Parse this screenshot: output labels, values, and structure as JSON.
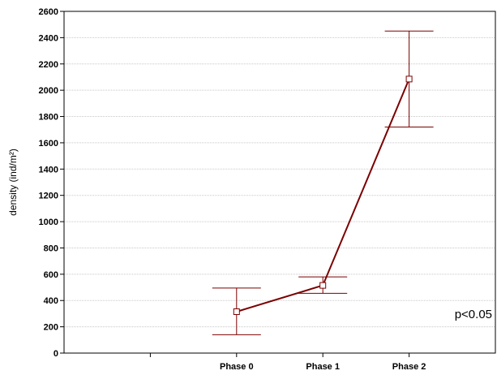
{
  "chart_data": {
    "type": "line",
    "title": "",
    "xlabel": "",
    "ylabel": "density (ind/m²)",
    "categories": [
      "Phase 0",
      "Phase 1",
      "Phase 2"
    ],
    "values": [
      315,
      515,
      2085
    ],
    "error_low": [
      140,
      455,
      1720
    ],
    "error_high": [
      495,
      580,
      2450
    ],
    "ylim": [
      0,
      2600
    ],
    "yticks": [
      0,
      200,
      400,
      600,
      800,
      1000,
      1200,
      1400,
      1600,
      1800,
      2000,
      2200,
      2400,
      2600
    ],
    "grid": true,
    "annotation": "p<0.05",
    "colors": {
      "series": "#7b0000",
      "grid": "#c8c8c8"
    }
  }
}
